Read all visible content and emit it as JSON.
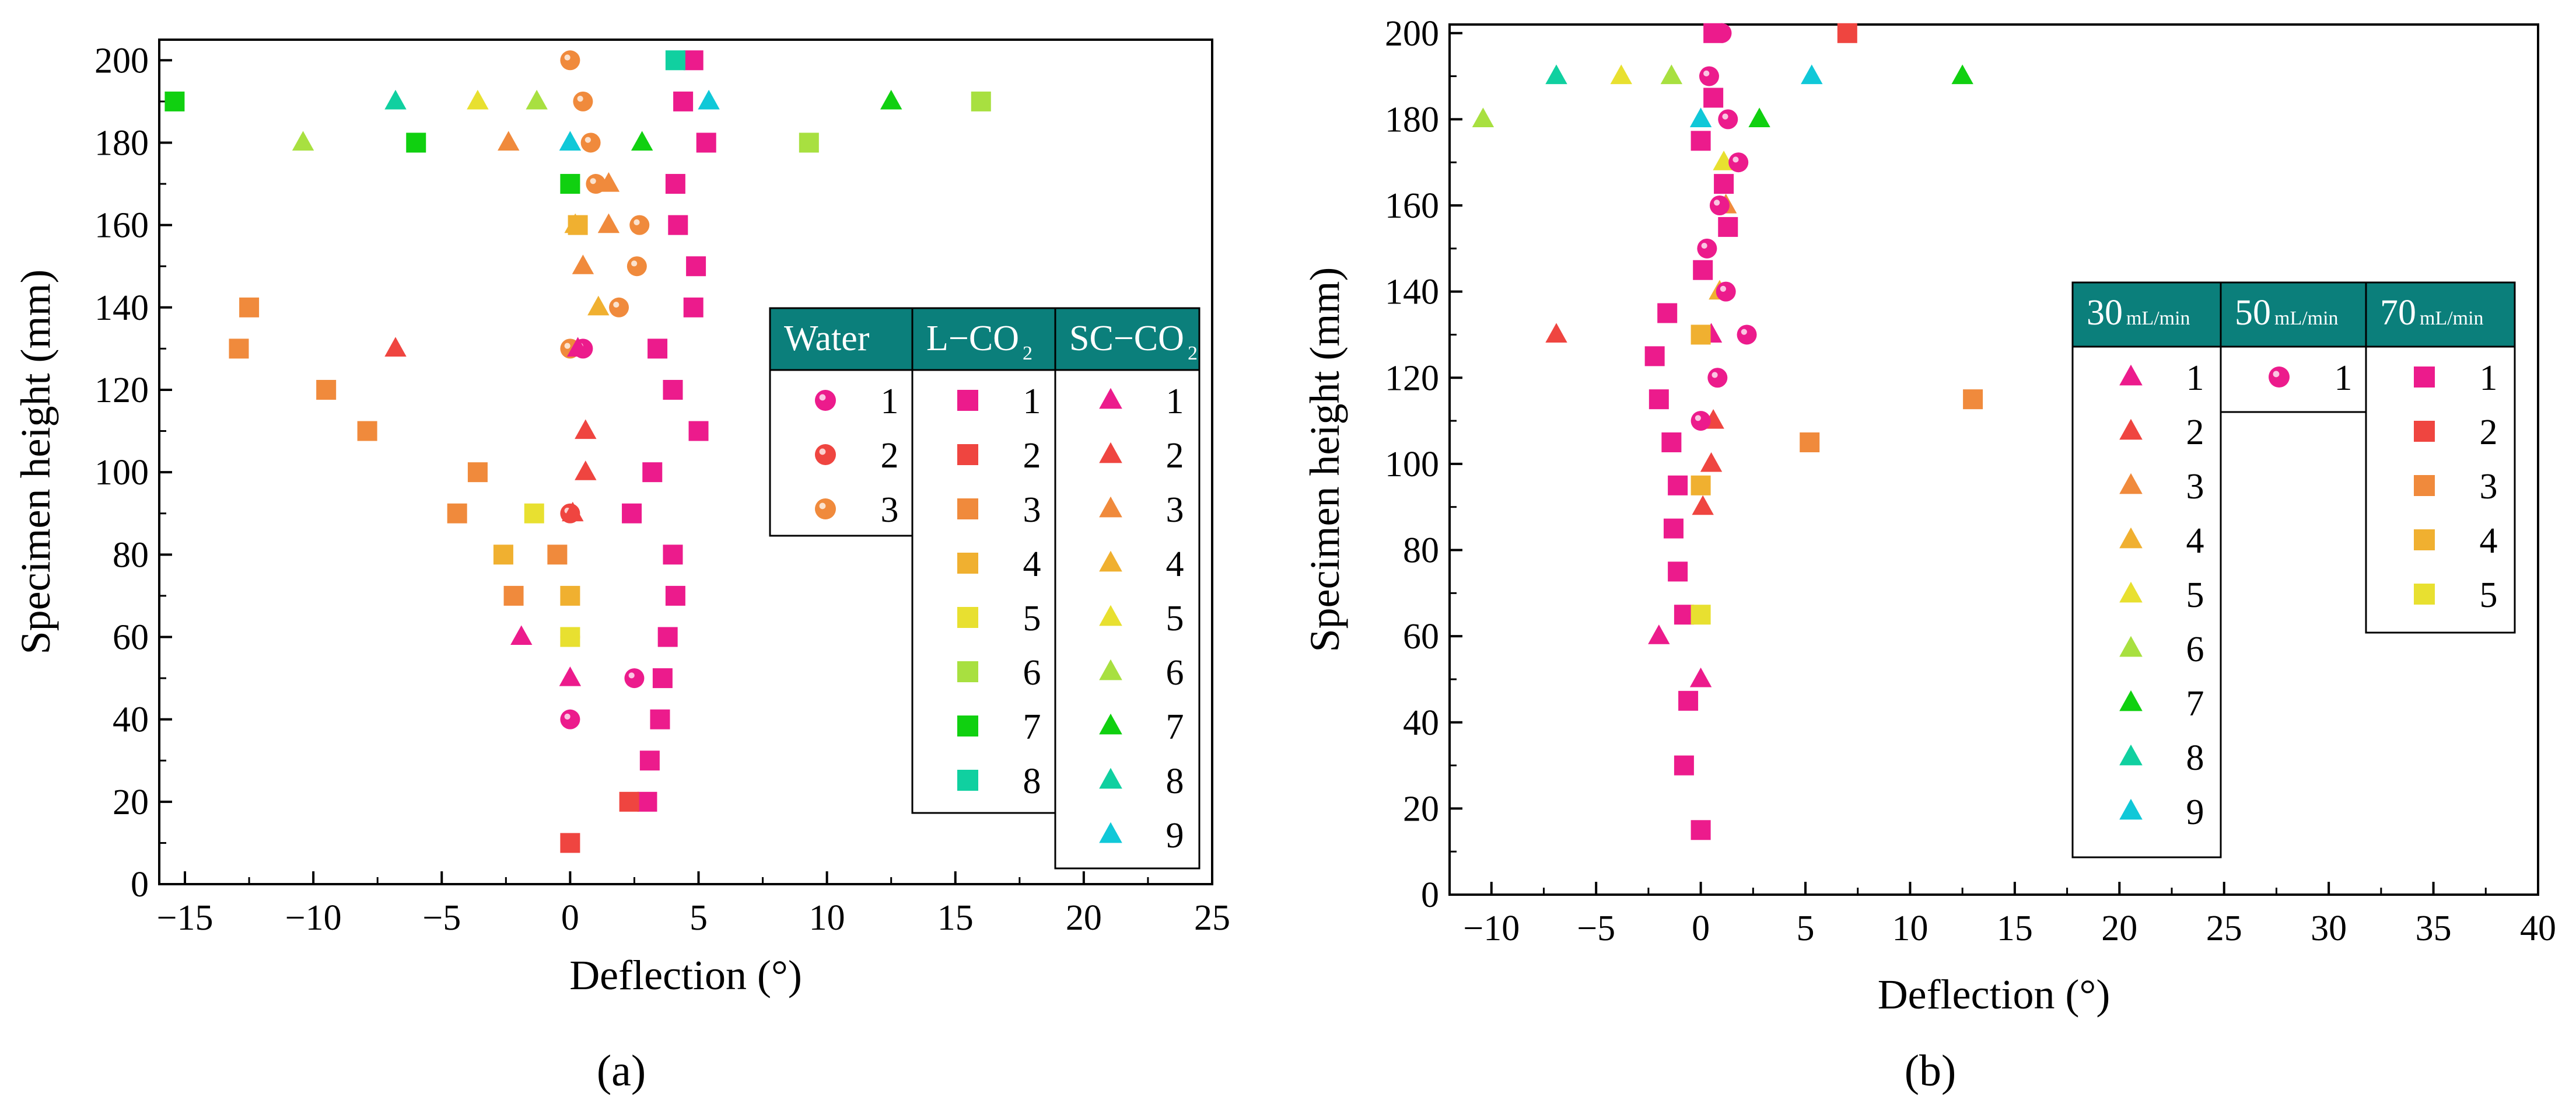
{
  "figure": {
    "panels": [
      {
        "id": "a",
        "caption": "(a)",
        "chart_data": {
          "type": "scatter",
          "title": "",
          "xlabel": "Deflection (°)",
          "ylabel": "Specimen height (mm)",
          "xlim": [
            -16,
            25
          ],
          "ylim": [
            0,
            205
          ],
          "xticks": [
            -15,
            -10,
            -5,
            0,
            5,
            10,
            15,
            20,
            25
          ],
          "yticks": [
            0,
            20,
            40,
            60,
            80,
            100,
            120,
            140,
            160,
            180,
            200
          ],
          "legend_groups": [
            {
              "header": "Water",
              "header_sub": "",
              "entries": [
                "1",
                "2",
                "3"
              ]
            },
            {
              "header": "L−CO",
              "header_sub": "2",
              "entries": [
                "1",
                "2",
                "3",
                "4",
                "5",
                "6",
                "7",
                "8"
              ]
            },
            {
              "header": "SC−CO",
              "header_sub": "2",
              "entries": [
                "1",
                "2",
                "3",
                "4",
                "5",
                "6",
                "7",
                "8",
                "9"
              ]
            }
          ],
          "series": [
            {
              "name": "Water 1",
              "marker": "sphere",
              "color": "#ec1b8c",
              "points": [
                [
                  0,
                  40
                ],
                [
                  2.5,
                  50
                ],
                [
                  0.5,
                  130
                ]
              ]
            },
            {
              "name": "Water 2",
              "marker": "sphere",
              "color": "#ef4540",
              "points": [
                [
                  0,
                  60
                ],
                [
                  0,
                  90
                ]
              ]
            },
            {
              "name": "Water 3",
              "marker": "sphere",
              "color": "#f08a3c",
              "points": [
                [
                  0,
                  200
                ],
                [
                  0.5,
                  190
                ],
                [
                  0.8,
                  180
                ],
                [
                  1,
                  170
                ],
                [
                  2.7,
                  160
                ],
                [
                  2.6,
                  150
                ],
                [
                  1.9,
                  140
                ],
                [
                  0,
                  130
                ]
              ]
            },
            {
              "name": "L−CO2 1",
              "marker": "square",
              "color": "#ec1b8c",
              "points": [
                [
                  4.8,
                  200
                ],
                [
                  4.4,
                  190
                ],
                [
                  5.3,
                  180
                ],
                [
                  4.1,
                  170
                ],
                [
                  4.2,
                  160
                ],
                [
                  4.9,
                  150
                ],
                [
                  4.8,
                  140
                ],
                [
                  3.4,
                  130
                ],
                [
                  4.0,
                  120
                ],
                [
                  5.0,
                  110
                ],
                [
                  3.2,
                  100
                ],
                [
                  2.4,
                  90
                ],
                [
                  4.0,
                  80
                ],
                [
                  4.1,
                  70
                ],
                [
                  3.8,
                  60
                ],
                [
                  3.6,
                  50
                ],
                [
                  3.5,
                  40
                ],
                [
                  3.1,
                  30
                ],
                [
                  3.0,
                  20
                ]
              ]
            },
            {
              "name": "L−CO2 2",
              "marker": "square",
              "color": "#ef4540",
              "points": [
                [
                  0,
                  10
                ],
                [
                  2.3,
                  20
                ]
              ]
            },
            {
              "name": "L−CO2 3",
              "marker": "square",
              "color": "#f08a3c",
              "points": [
                [
                  -12.5,
                  140
                ],
                [
                  -12.9,
                  130
                ],
                [
                  -9.5,
                  120
                ],
                [
                  -7.9,
                  110
                ],
                [
                  -3.6,
                  100
                ],
                [
                  -4.4,
                  90
                ],
                [
                  -0.5,
                  80
                ],
                [
                  -2.2,
                  70
                ]
              ]
            },
            {
              "name": "L−CO2 4",
              "marker": "square",
              "color": "#f0b030",
              "points": [
                [
                  -2.6,
                  80
                ],
                [
                  0,
                  70
                ],
                [
                  0.3,
                  160
                ]
              ]
            },
            {
              "name": "L−CO2 5",
              "marker": "square",
              "color": "#e8e030",
              "points": [
                [
                  -1.4,
                  90
                ],
                [
                  0,
                  60
                ]
              ]
            },
            {
              "name": "L−CO2 6",
              "marker": "square",
              "color": "#a8e040",
              "points": [
                [
                  16,
                  190
                ],
                [
                  9.3,
                  180
                ]
              ]
            },
            {
              "name": "L−CO2 7",
              "marker": "square",
              "color": "#10d010",
              "points": [
                [
                  -15.4,
                  190
                ],
                [
                  -6.0,
                  180
                ],
                [
                  0,
                  170
                ]
              ]
            },
            {
              "name": "L−CO2 8",
              "marker": "square",
              "color": "#10d0a0",
              "points": [
                [
                  4.1,
                  200
                ]
              ]
            },
            {
              "name": "SC−CO2 1",
              "marker": "triangle",
              "color": "#ec1b8c",
              "points": [
                [
                  -1.9,
                  60
                ],
                [
                  0,
                  50
                ],
                [
                  0.3,
                  130
                ]
              ]
            },
            {
              "name": "SC−CO2 2",
              "marker": "triangle",
              "color": "#ef4540",
              "points": [
                [
                  -6.8,
                  130
                ],
                [
                  0.6,
                  110
                ],
                [
                  0.6,
                  100
                ],
                [
                  0.1,
                  90
                ]
              ]
            },
            {
              "name": "SC−CO2 3",
              "marker": "triangle",
              "color": "#f08a3c",
              "points": [
                [
                  -2.4,
                  180
                ],
                [
                  1.5,
                  160
                ],
                [
                  1.5,
                  170
                ],
                [
                  0.5,
                  150
                ]
              ]
            },
            {
              "name": "SC−CO2 4",
              "marker": "triangle",
              "color": "#f0b030",
              "points": [
                [
                  1.1,
                  140
                ],
                [
                  0.2,
                  160
                ]
              ]
            },
            {
              "name": "SC−CO2 5",
              "marker": "triangle",
              "color": "#e8e030",
              "points": [
                [
                  -3.6,
                  190
                ]
              ]
            },
            {
              "name": "SC−CO2 6",
              "marker": "triangle",
              "color": "#a8e040",
              "points": [
                [
                  -10.4,
                  180
                ],
                [
                  -1.3,
                  190
                ]
              ]
            },
            {
              "name": "SC−CO2 7",
              "marker": "triangle",
              "color": "#10d010",
              "points": [
                [
                  12.5,
                  190
                ],
                [
                  2.8,
                  180
                ]
              ]
            },
            {
              "name": "SC−CO2 8",
              "marker": "triangle",
              "color": "#10d0a0",
              "points": [
                [
                  -6.8,
                  190
                ]
              ]
            },
            {
              "name": "SC−CO2 9",
              "marker": "triangle",
              "color": "#10c8d8",
              "points": [
                [
                  5.4,
                  190
                ],
                [
                  0,
                  180
                ]
              ]
            }
          ]
        }
      },
      {
        "id": "b",
        "caption": "(b)",
        "chart_data": {
          "type": "scatter",
          "title": "",
          "xlabel": "Deflection (°)",
          "ylabel": "Specimen height (mm)",
          "xlim": [
            -12,
            40
          ],
          "ylim": [
            0,
            202
          ],
          "xticks": [
            -10,
            -5,
            0,
            5,
            10,
            15,
            20,
            25,
            30,
            35,
            40
          ],
          "yticks": [
            0,
            20,
            40,
            60,
            80,
            100,
            120,
            140,
            160,
            180,
            200
          ],
          "legend_groups": [
            {
              "header": "30",
              "header_sub": "mL/min",
              "entries": [
                "1",
                "2",
                "3",
                "4",
                "5",
                "6",
                "7",
                "8",
                "9"
              ]
            },
            {
              "header": "50",
              "header_sub": "mL/min",
              "entries": [
                "1"
              ]
            },
            {
              "header": "70",
              "header_sub": "mL/min",
              "entries": [
                "1",
                "2",
                "3",
                "4",
                "5"
              ]
            }
          ],
          "series": [
            {
              "name": "30 mL/min 1",
              "marker": "triangle",
              "color": "#ec1b8c",
              "points": [
                [
                  -2.0,
                  60
                ],
                [
                  0,
                  50
                ],
                [
                  0.5,
                  130
                ]
              ]
            },
            {
              "name": "30 mL/min 2",
              "marker": "triangle",
              "color": "#ef4540",
              "points": [
                [
                  -6.9,
                  130
                ],
                [
                  0.6,
                  110
                ],
                [
                  0.5,
                  100
                ],
                [
                  0.1,
                  90
                ]
              ]
            },
            {
              "name": "30 mL/min 3",
              "marker": "triangle",
              "color": "#f08a3c",
              "points": [
                [
                  1.2,
                  160
                ]
              ]
            },
            {
              "name": "30 mL/min 4",
              "marker": "triangle",
              "color": "#f0b030",
              "points": [
                [
                  0.9,
                  140
                ]
              ]
            },
            {
              "name": "30 mL/min 5",
              "marker": "triangle",
              "color": "#e8e030",
              "points": [
                [
                  -3.8,
                  190
                ],
                [
                  1.1,
                  170
                ]
              ]
            },
            {
              "name": "30 mL/min 6",
              "marker": "triangle",
              "color": "#a8e040",
              "points": [
                [
                  -10.4,
                  180
                ],
                [
                  -1.4,
                  190
                ]
              ]
            },
            {
              "name": "30 mL/min 7",
              "marker": "triangle",
              "color": "#10d010",
              "points": [
                [
                  12.5,
                  190
                ],
                [
                  2.8,
                  180
                ]
              ]
            },
            {
              "name": "30 mL/min 8",
              "marker": "triangle",
              "color": "#10d0a0",
              "points": [
                [
                  -6.9,
                  190
                ]
              ]
            },
            {
              "name": "30 mL/min 9",
              "marker": "triangle",
              "color": "#10c8d8",
              "points": [
                [
                  5.3,
                  190
                ],
                [
                  0,
                  180
                ]
              ]
            },
            {
              "name": "50 mL/min 1",
              "marker": "sphere",
              "color": "#ec1b8c",
              "points": [
                [
                  1.0,
                  200
                ],
                [
                  0.4,
                  190
                ],
                [
                  1.3,
                  180
                ],
                [
                  1.8,
                  170
                ],
                [
                  0.9,
                  160
                ],
                [
                  0.3,
                  150
                ],
                [
                  1.2,
                  140
                ],
                [
                  2.2,
                  130
                ],
                [
                  0.8,
                  120
                ],
                [
                  0,
                  110
                ]
              ]
            },
            {
              "name": "70 mL/min 1",
              "marker": "square",
              "color": "#ec1b8c",
              "points": [
                [
                  0.6,
                  200
                ],
                [
                  0.6,
                  185
                ],
                [
                  0,
                  175
                ],
                [
                  1.1,
                  165
                ],
                [
                  1.3,
                  155
                ],
                [
                  0.1,
                  145
                ],
                [
                  -1.6,
                  135
                ],
                [
                  -2.2,
                  125
                ],
                [
                  -2.0,
                  115
                ],
                [
                  -1.4,
                  105
                ],
                [
                  -1.1,
                  95
                ],
                [
                  -1.3,
                  85
                ],
                [
                  -1.1,
                  75
                ],
                [
                  -0.8,
                  65
                ],
                [
                  -0.6,
                  45
                ],
                [
                  -0.8,
                  30
                ],
                [
                  0,
                  15
                ]
              ]
            },
            {
              "name": "70 mL/min 2",
              "marker": "square",
              "color": "#ef4540",
              "points": [
                [
                  7.0,
                  200
                ]
              ]
            },
            {
              "name": "70 mL/min 3",
              "marker": "square",
              "color": "#f08a3c",
              "points": [
                [
                  13.0,
                  115
                ],
                [
                  5.2,
                  105
                ]
              ]
            },
            {
              "name": "70 mL/min 4",
              "marker": "square",
              "color": "#f0b030",
              "points": [
                [
                  0,
                  95
                ],
                [
                  0,
                  130
                ]
              ]
            },
            {
              "name": "70 mL/min 5",
              "marker": "square",
              "color": "#e8e030",
              "points": [
                [
                  0,
                  65
                ]
              ]
            }
          ]
        }
      }
    ]
  },
  "colors": {
    "legend_header": "#0b7f7b",
    "axis": "#000000"
  }
}
